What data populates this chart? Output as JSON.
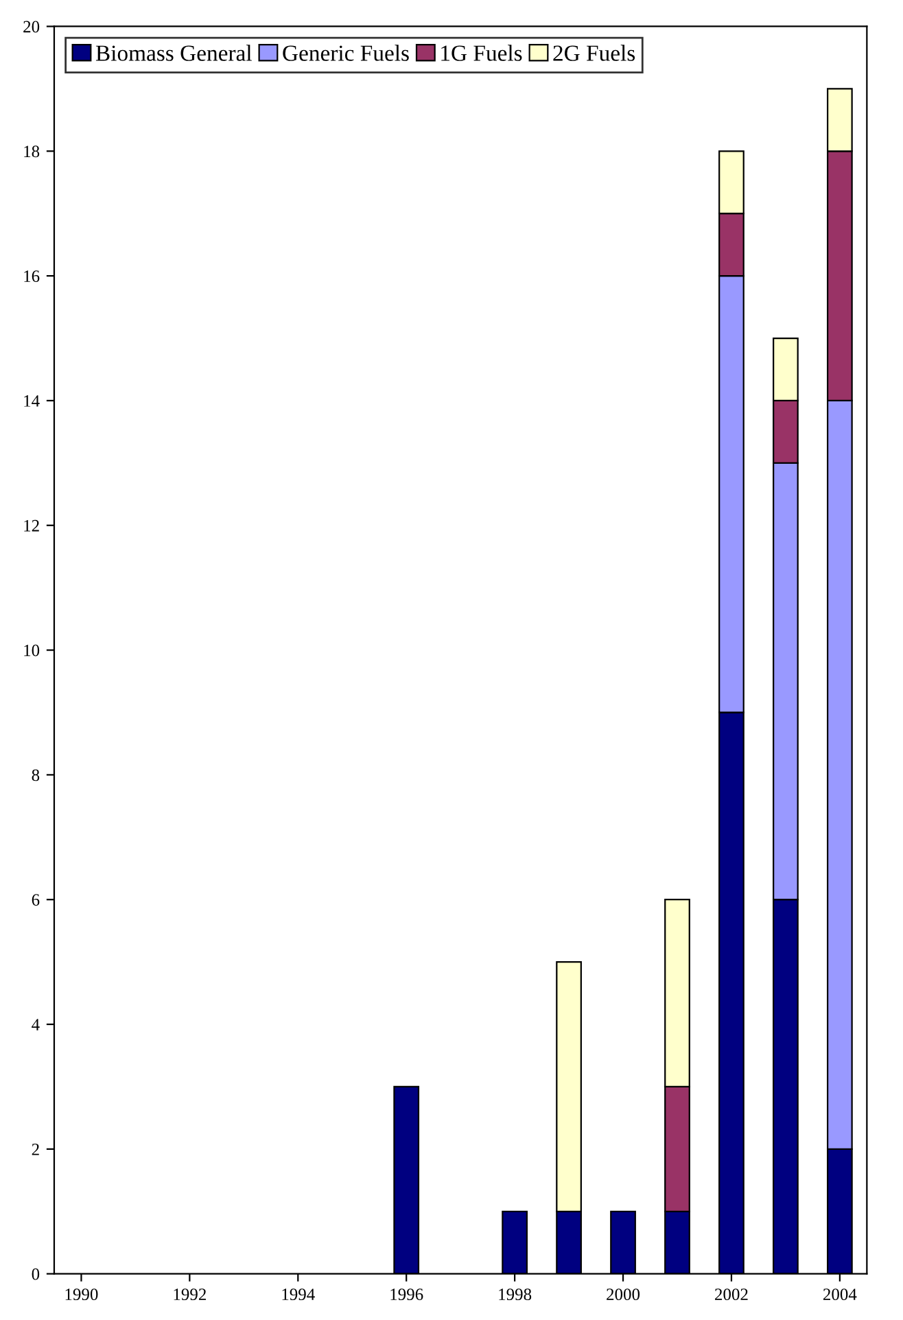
{
  "chart_data": {
    "type": "bar",
    "stacked": true,
    "categories": [
      "1990",
      null,
      "1992",
      null,
      "1994",
      null,
      "1996",
      null,
      "1998",
      null,
      "2000",
      null,
      "2002",
      null,
      "2004"
    ],
    "series": [
      {
        "name": "Biomass General",
        "color": "#000080",
        "values": [
          0,
          0,
          0,
          0,
          0,
          0,
          3,
          0,
          1,
          1,
          1,
          1,
          9,
          6,
          2
        ]
      },
      {
        "name": "Generic Fuels",
        "color": "#9999ff",
        "values": [
          0,
          0,
          0,
          0,
          0,
          0,
          0,
          0,
          0,
          0,
          0,
          0,
          7,
          7,
          12
        ]
      },
      {
        "name": "1G Fuels",
        "color": "#993366",
        "values": [
          0,
          0,
          0,
          0,
          0,
          0,
          0,
          0,
          0,
          0,
          0,
          2,
          1,
          1,
          4
        ]
      },
      {
        "name": "2G Fuels",
        "color": "#ffffcc",
        "values": [
          0,
          0,
          0,
          0,
          0,
          0,
          0,
          0,
          0,
          4,
          0,
          3,
          1,
          1,
          1
        ]
      }
    ],
    "ylim": [
      0,
      20
    ],
    "yticks": [
      0,
      2,
      4,
      6,
      8,
      10,
      12,
      14,
      16,
      18,
      20
    ],
    "grid": false,
    "legend": "top left"
  }
}
